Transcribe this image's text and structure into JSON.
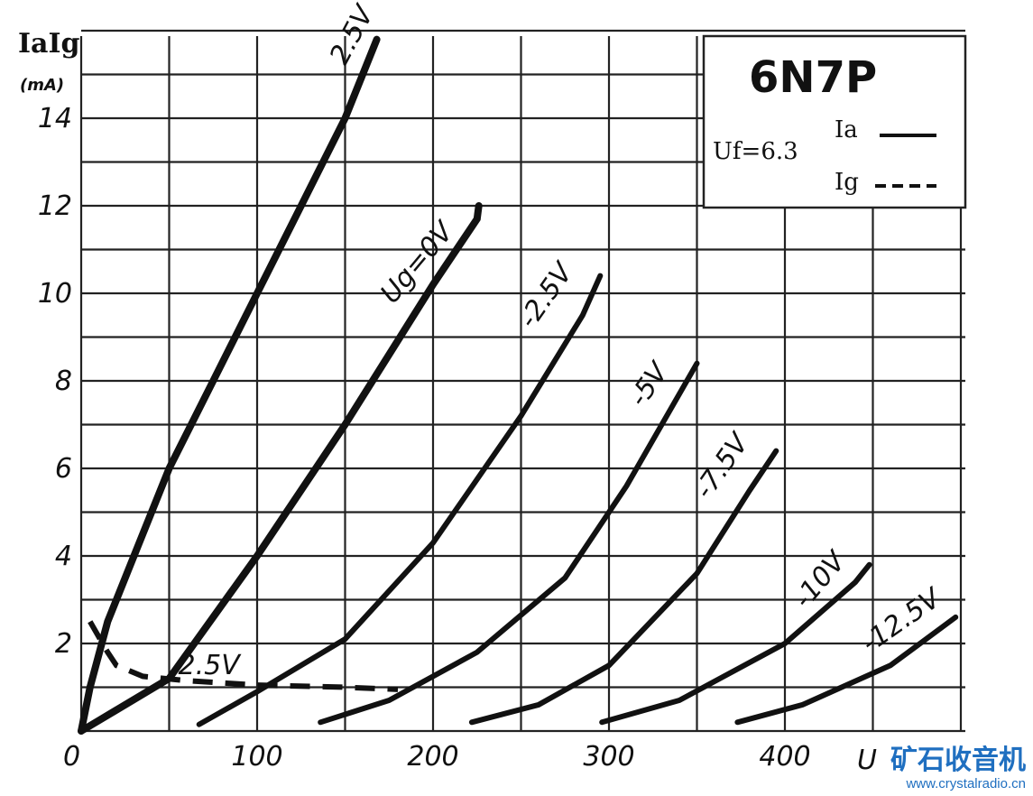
{
  "chart_data": {
    "type": "line",
    "title": "6N7P",
    "ylabel_main": "IaIg",
    "ylabel_unit": "(mA)",
    "xlabel": "U",
    "filament": "Uf=6.3",
    "legend": [
      {
        "label": "Ia",
        "style": "solid"
      },
      {
        "label": "Ig",
        "style": "dashed"
      }
    ],
    "xlim": [
      0,
      500
    ],
    "ylim": [
      0,
      16
    ],
    "xticks": [
      "0",
      "100",
      "200",
      "300",
      "400"
    ],
    "yticks": [
      "2",
      "4",
      "6",
      "8",
      "10",
      "12",
      "14"
    ],
    "series": [
      {
        "name": "2.5V",
        "style": "solid",
        "points": [
          [
            0,
            0
          ],
          [
            5,
            1
          ],
          [
            15,
            2.5
          ],
          [
            30,
            4
          ],
          [
            50,
            6
          ],
          [
            75,
            8
          ],
          [
            100,
            10
          ],
          [
            125,
            12
          ],
          [
            150,
            14
          ],
          [
            168,
            15.8
          ]
        ]
      },
      {
        "name": "Ug=0V",
        "style": "solid",
        "points": [
          [
            0,
            0
          ],
          [
            50,
            1.2
          ],
          [
            100,
            4
          ],
          [
            150,
            7
          ],
          [
            200,
            10.2
          ],
          [
            225,
            11.7
          ],
          [
            226,
            12
          ]
        ]
      },
      {
        "name": "-2.5V",
        "style": "solid",
        "points": [
          [
            67,
            0.15
          ],
          [
            100,
            0.9
          ],
          [
            150,
            2.1
          ],
          [
            200,
            4.3
          ],
          [
            250,
            7.2
          ],
          [
            285,
            9.5
          ],
          [
            295,
            10.4
          ]
        ]
      },
      {
        "name": "-5V",
        "style": "solid",
        "points": [
          [
            136,
            0.2
          ],
          [
            175,
            0.7
          ],
          [
            225,
            1.8
          ],
          [
            275,
            3.5
          ],
          [
            310,
            5.6
          ],
          [
            350,
            8.4
          ]
        ]
      },
      {
        "name": "-7.5V",
        "style": "solid",
        "points": [
          [
            222,
            0.2
          ],
          [
            260,
            0.6
          ],
          [
            300,
            1.5
          ],
          [
            350,
            3.6
          ],
          [
            380,
            5.5
          ],
          [
            395,
            6.4
          ]
        ]
      },
      {
        "name": "-10V",
        "style": "solid",
        "points": [
          [
            296,
            0.2
          ],
          [
            340,
            0.7
          ],
          [
            400,
            2
          ],
          [
            440,
            3.4
          ],
          [
            448,
            3.8
          ]
        ]
      },
      {
        "name": "-12.5V",
        "style": "solid",
        "points": [
          [
            373,
            0.2
          ],
          [
            410,
            0.6
          ],
          [
            460,
            1.5
          ],
          [
            497,
            2.6
          ]
        ]
      },
      {
        "name": "2.5V",
        "style": "dashed",
        "points": [
          [
            5,
            2.5
          ],
          [
            15,
            1.8
          ],
          [
            20,
            1.5
          ],
          [
            35,
            1.25
          ],
          [
            60,
            1.15
          ],
          [
            100,
            1.05
          ],
          [
            150,
            1.0
          ],
          [
            180,
            0.95
          ]
        ]
      }
    ],
    "grid": true
  },
  "watermark": {
    "cn": "矿石收音机",
    "url": "www.crystalradio.cn"
  }
}
